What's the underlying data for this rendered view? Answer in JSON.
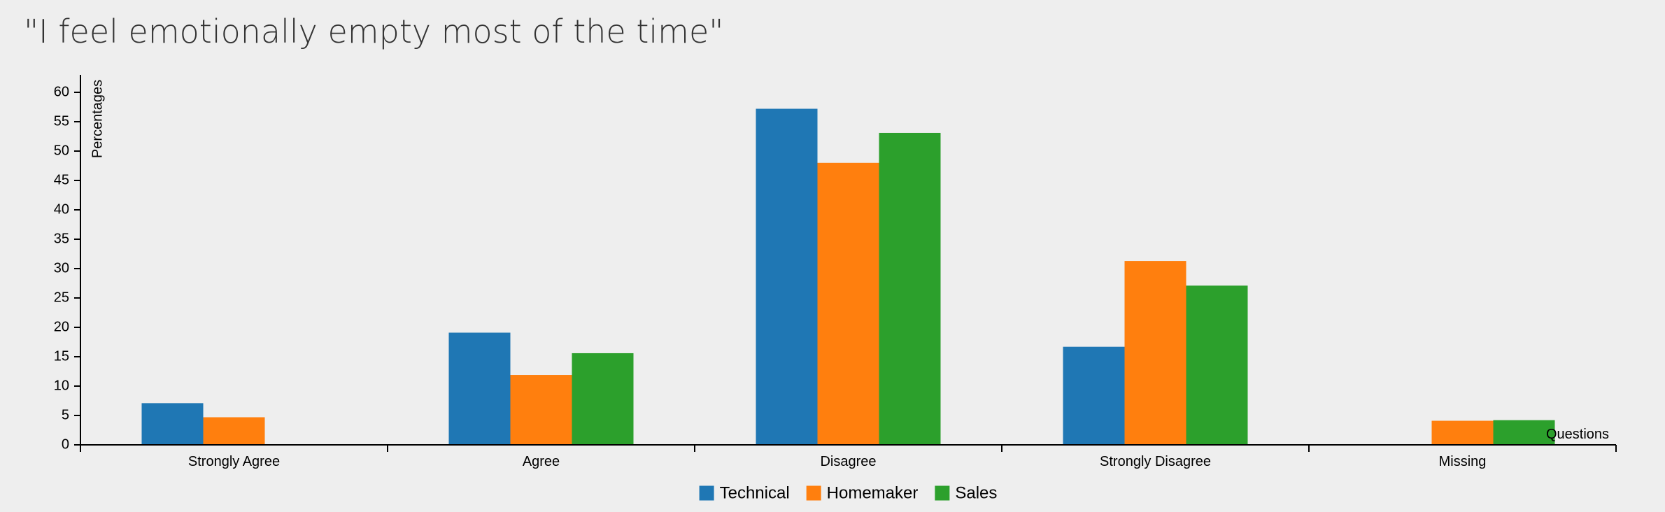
{
  "chart_data": {
    "type": "bar",
    "title": "\"I feel emotionally empty most of the time\"",
    "xlabel": "Questions",
    "ylabel": "Percentages",
    "categories": [
      "Strongly Agree",
      "Agree",
      "Disagree",
      "Strongly Disagree",
      "Missing"
    ],
    "series": [
      {
        "name": "Technical",
        "color": "#1f77b4",
        "values": [
          7.1,
          19.1,
          57.2,
          16.7,
          0
        ]
      },
      {
        "name": "Homemaker",
        "color": "#ff7f0e",
        "values": [
          4.7,
          11.9,
          48.0,
          31.3,
          4.1
        ]
      },
      {
        "name": "Sales",
        "color": "#2ca02c",
        "values": [
          0,
          15.6,
          53.1,
          27.1,
          4.2
        ]
      }
    ],
    "ylim": [
      0,
      63
    ],
    "yticks": [
      0,
      5,
      10,
      15,
      20,
      25,
      30,
      35,
      40,
      45,
      50,
      55,
      60
    ],
    "grid": false,
    "legend_position": "bottom-center"
  }
}
